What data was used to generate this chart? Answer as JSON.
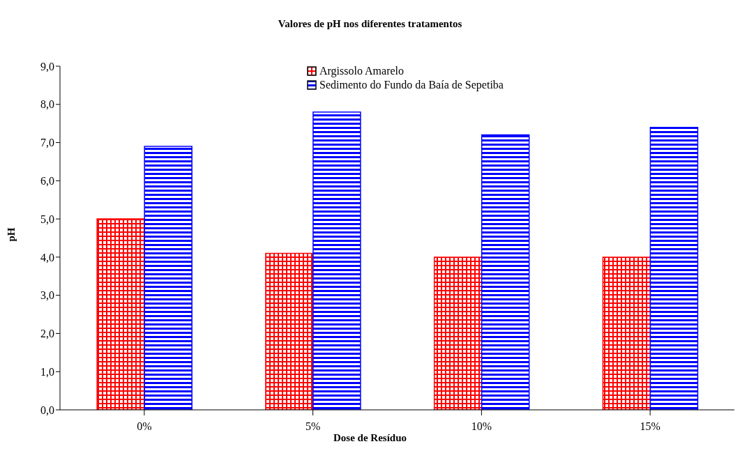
{
  "chart_data": {
    "type": "bar",
    "title": "Valores de pH nos diferentes tratamentos",
    "xlabel": "Dose de Resíduo",
    "ylabel": "pH",
    "categories": [
      "0%",
      "5%",
      "10%",
      "15%"
    ],
    "series": [
      {
        "name": "Argissolo Amarelo",
        "color": "#ff0000",
        "values": [
          5.0,
          4.1,
          4.0,
          4.0
        ]
      },
      {
        "name": "Sedimento do Fundo da Baía de Sepetiba",
        "color": "#0000ff",
        "values": [
          6.9,
          7.8,
          7.2,
          7.4
        ]
      }
    ],
    "ylim": [
      0,
      9
    ],
    "yticks": [
      {
        "value": 0,
        "label": "0,0"
      },
      {
        "value": 1,
        "label": "1,0"
      },
      {
        "value": 2,
        "label": "2,0"
      },
      {
        "value": 3,
        "label": "3,0"
      },
      {
        "value": 4,
        "label": "4,0"
      },
      {
        "value": 5,
        "label": "5,0"
      },
      {
        "value": 6,
        "label": "6,0"
      },
      {
        "value": 7,
        "label": "7,0"
      },
      {
        "value": 8,
        "label": "8,0"
      },
      {
        "value": 9,
        "label": "9,0"
      }
    ],
    "grid": false,
    "legend": "top"
  }
}
